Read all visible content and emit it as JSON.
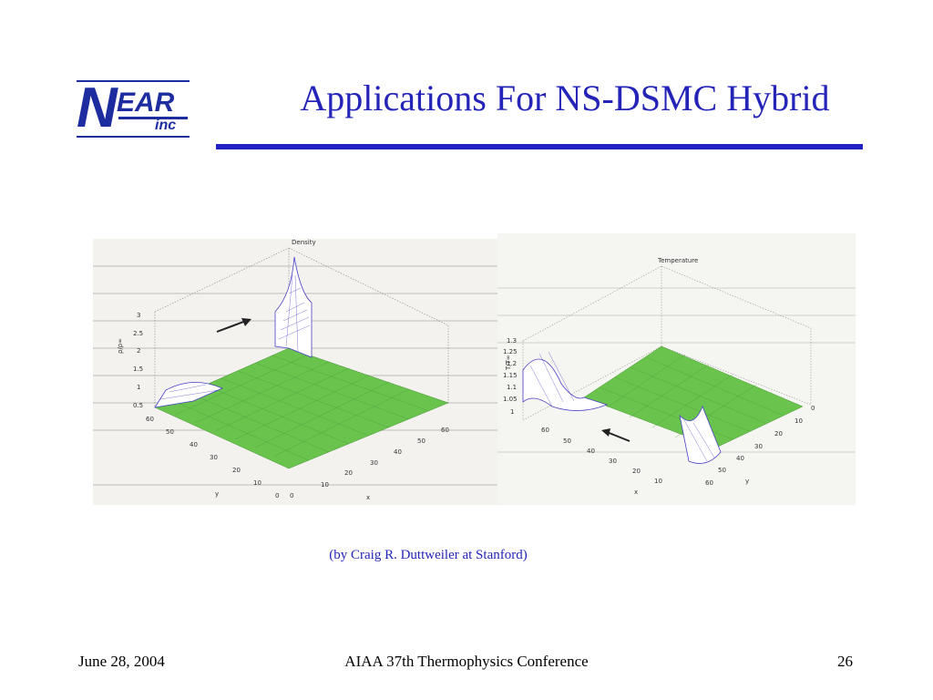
{
  "logo": {
    "n": "N",
    "ear": "EAR",
    "inc": "inc"
  },
  "title": "Applications For NS-DSMC Hybrid",
  "credit": "(by Craig R. Duttweiler at Stanford)",
  "footer": {
    "date": "June 28, 2004",
    "conference": "AIAA 37th Thermophysics Conference",
    "page": "26"
  },
  "figures": {
    "left": {
      "title": "Density",
      "zlabel": "ρ/ρ∞",
      "xlabel": "x",
      "ylabel": "y",
      "zticks": [
        "3",
        "2.5",
        "2",
        "1.5",
        "1",
        "0.5"
      ],
      "yticks": [
        "60",
        "50",
        "40",
        "30",
        "20",
        "10",
        "0"
      ],
      "xticks": [
        "0",
        "10",
        "20",
        "30",
        "40",
        "50",
        "60"
      ]
    },
    "right": {
      "title": "Temperature",
      "zlabel": "T/T∞",
      "xlabel": "x",
      "ylabel": "y",
      "zticks": [
        "1.3",
        "1.25",
        "1.2",
        "1.15",
        "1.1",
        "1.05",
        "1"
      ],
      "xticks": [
        "60",
        "50",
        "40",
        "30",
        "20",
        "10"
      ],
      "yticks": [
        "0",
        "10",
        "20",
        "30",
        "40",
        "50",
        "60"
      ]
    }
  },
  "colors": {
    "title": "#2424b8",
    "rule": "#2121c4",
    "continuum": "#69c34d",
    "particle": "#4a3fc7"
  }
}
